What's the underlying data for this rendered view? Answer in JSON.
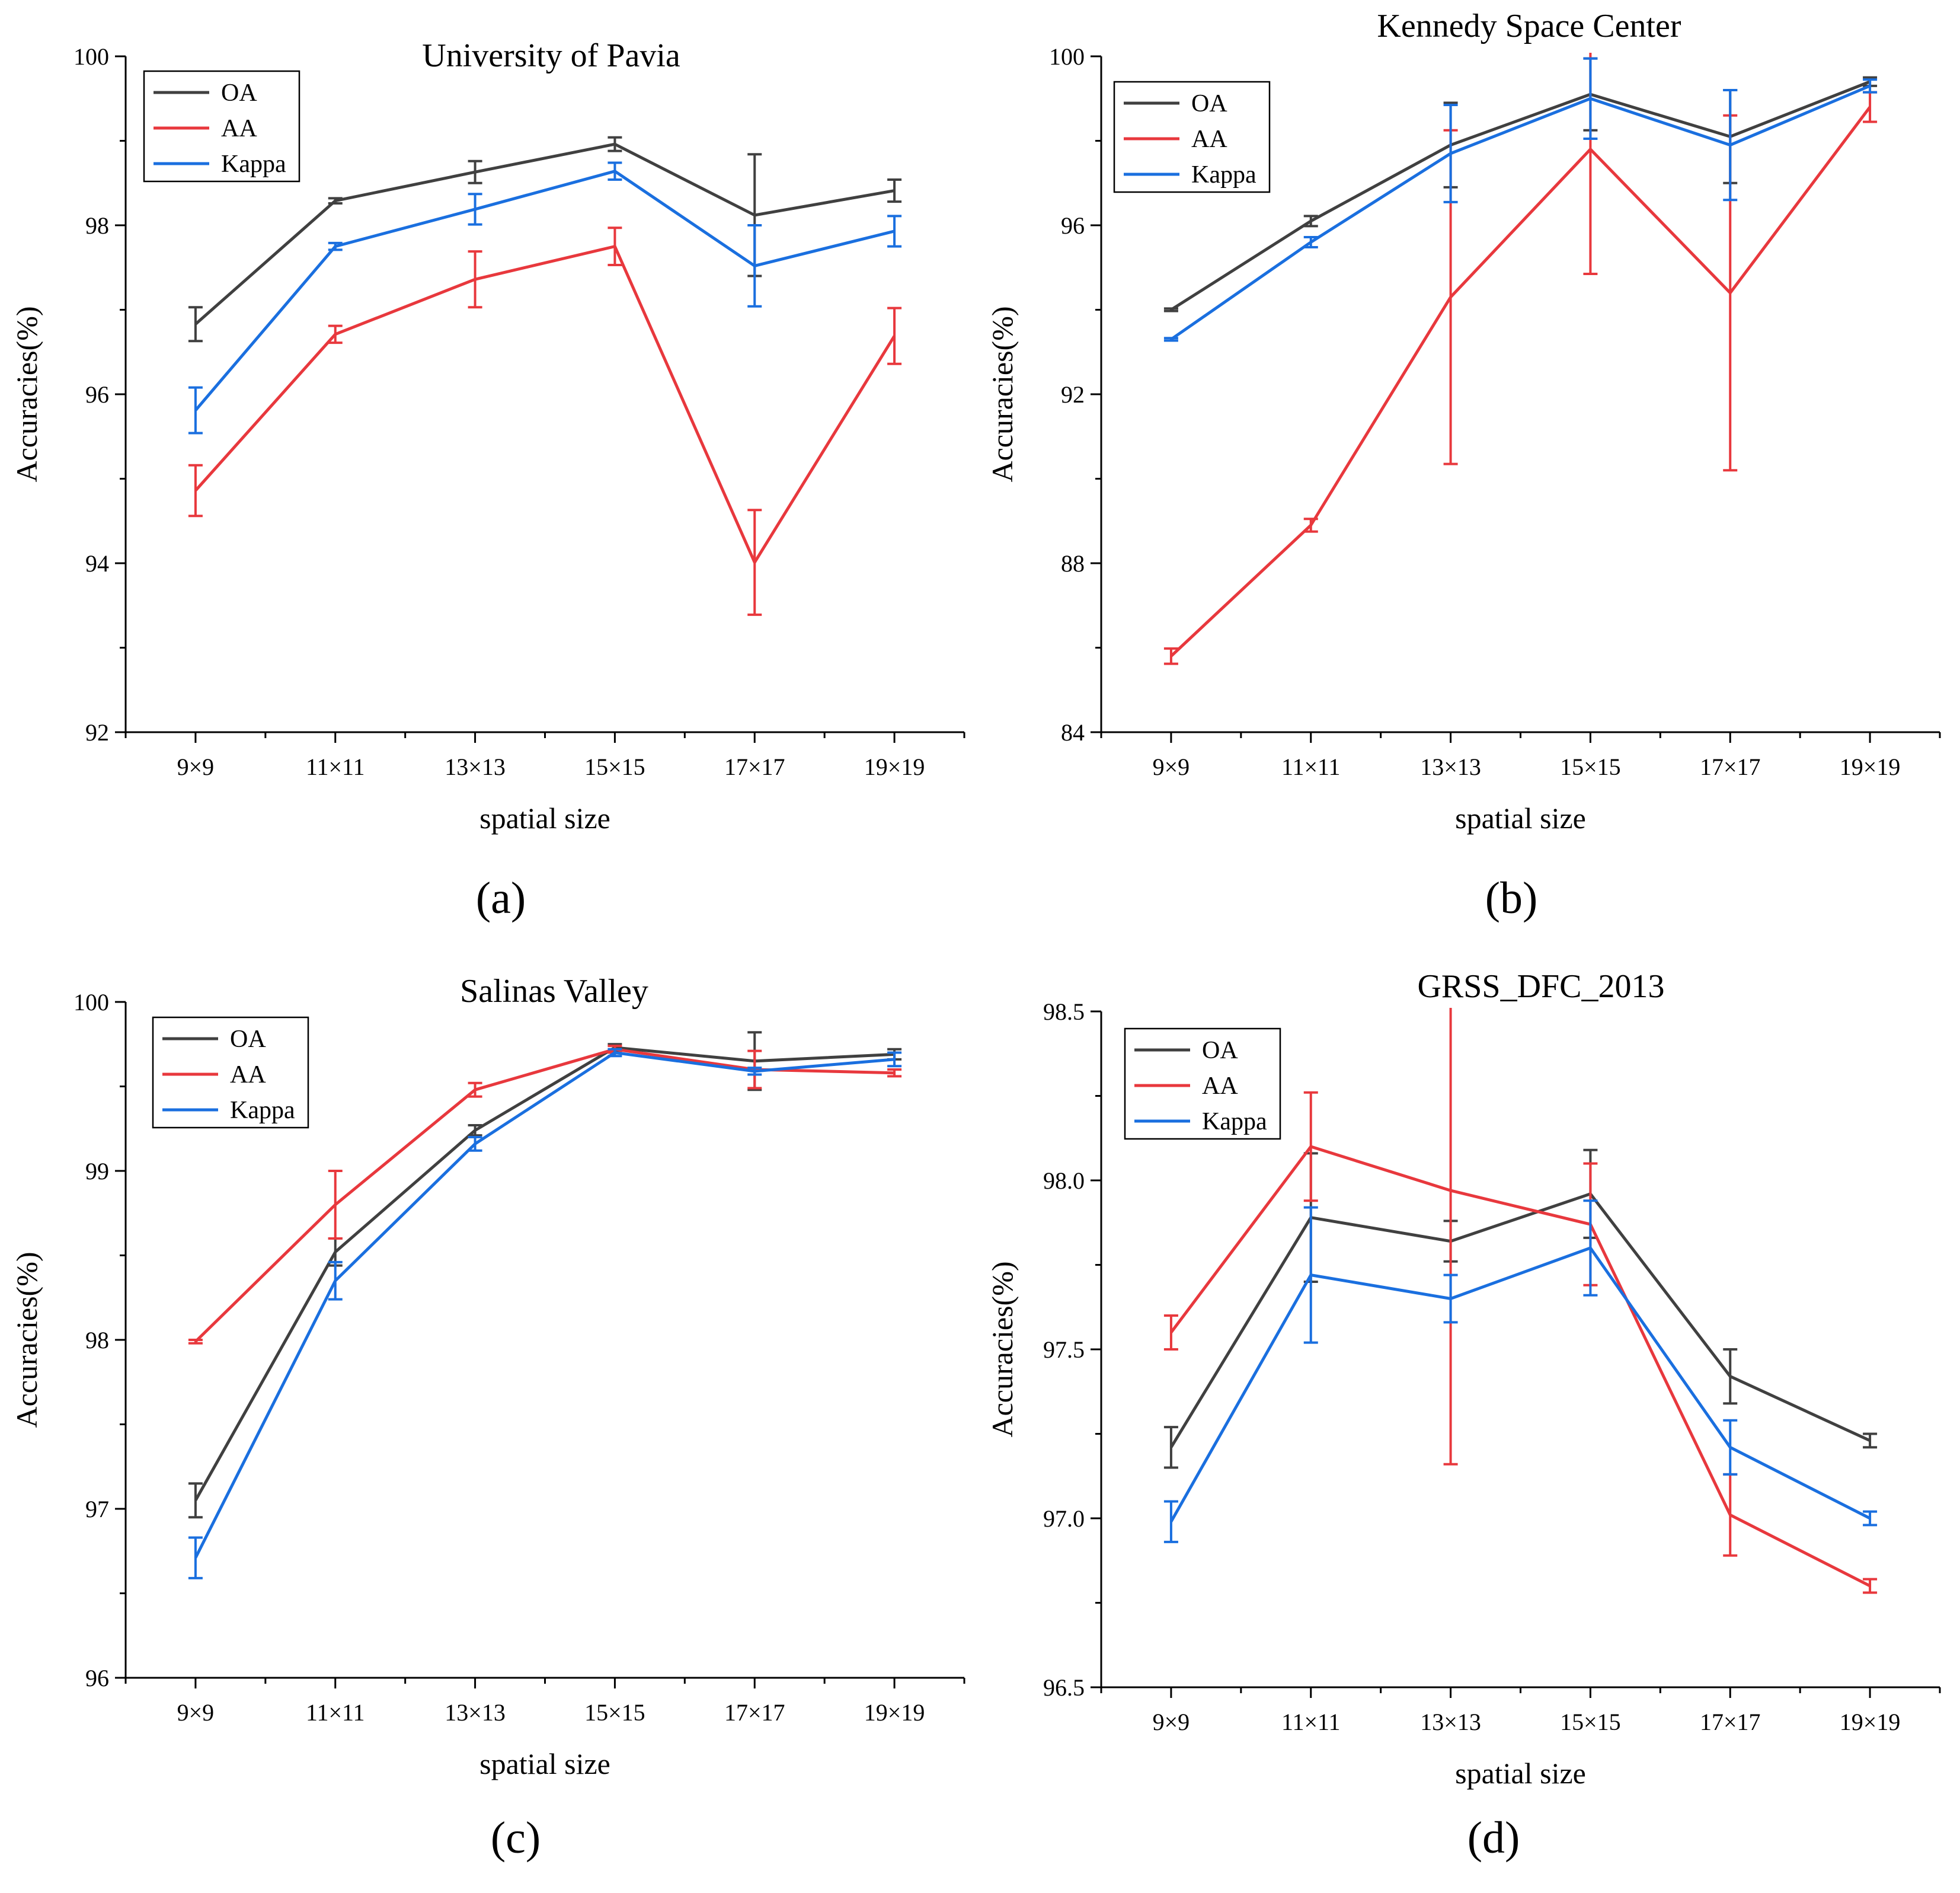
{
  "colors": {
    "OA": "#404040",
    "AA": "#e8383d",
    "Kappa": "#1a6fdf",
    "axis": "#000000"
  },
  "chart_data": [
    {
      "type": "line",
      "panel": "(a)",
      "title": "University of Pavia",
      "xlabel": "spatial size",
      "ylabel": "Accuracies(%)",
      "categories": [
        "9×9",
        "11×11",
        "13×13",
        "15×15",
        "17×17",
        "19×19"
      ],
      "ylim": [
        92,
        100
      ],
      "yticks": [
        92,
        94,
        96,
        98,
        100
      ],
      "yminor": 1,
      "legend_position": "top-left",
      "series": [
        {
          "name": "OA",
          "values": [
            96.83,
            98.29,
            98.63,
            98.96,
            98.12,
            98.41
          ],
          "errors": [
            0.2,
            0.03,
            0.13,
            0.08,
            0.72,
            0.13
          ]
        },
        {
          "name": "AA",
          "values": [
            94.86,
            96.71,
            97.36,
            97.75,
            94.01,
            96.69
          ],
          "errors": [
            0.3,
            0.1,
            0.33,
            0.22,
            0.62,
            0.33
          ]
        },
        {
          "name": "Kappa",
          "values": [
            95.81,
            97.75,
            98.19,
            98.64,
            97.52,
            97.93
          ],
          "errors": [
            0.27,
            0.04,
            0.18,
            0.1,
            0.48,
            0.18
          ]
        }
      ]
    },
    {
      "type": "line",
      "panel": "(b)",
      "title": "Kennedy Space Center",
      "xlabel": "spatial size",
      "ylabel": "Accuracies(%)",
      "categories": [
        "9×9",
        "11×11",
        "13×13",
        "15×15",
        "17×17",
        "19×19"
      ],
      "ylim": [
        84,
        100
      ],
      "yticks": [
        84,
        88,
        92,
        96,
        100
      ],
      "yminor": 2,
      "legend_position": "top-left",
      "series": [
        {
          "name": "OA",
          "values": [
            94.0,
            96.1,
            97.9,
            99.1,
            98.1,
            99.4
          ],
          "errors": [
            0.03,
            0.12,
            1.0,
            0.85,
            1.1,
            0.1
          ]
        },
        {
          "name": "AA",
          "values": [
            85.8,
            88.9,
            94.3,
            97.8,
            94.4,
            98.8
          ],
          "errors": [
            0.18,
            0.15,
            3.95,
            2.95,
            4.2,
            0.35
          ]
        },
        {
          "name": "Kappa",
          "values": [
            93.3,
            95.6,
            97.7,
            99.0,
            97.9,
            99.3
          ],
          "errors": [
            0.03,
            0.12,
            1.15,
            0.95,
            1.3,
            0.15
          ]
        }
      ]
    },
    {
      "type": "line",
      "panel": "(c)",
      "title": "Salinas Valley",
      "xlabel": "spatial size",
      "ylabel": "Accuracies(%)",
      "categories": [
        "9×9",
        "11×11",
        "13×13",
        "15×15",
        "17×17",
        "19×19"
      ],
      "ylim": [
        96,
        100
      ],
      "yticks": [
        96,
        97,
        98,
        99,
        100
      ],
      "yminor": 0.5,
      "legend_position": "top-left",
      "series": [
        {
          "name": "OA",
          "values": [
            97.05,
            98.52,
            99.24,
            99.73,
            99.65,
            99.69
          ],
          "errors": [
            0.1,
            0.08,
            0.03,
            0.02,
            0.17,
            0.03
          ]
        },
        {
          "name": "AA",
          "values": [
            97.99,
            98.8,
            99.48,
            99.72,
            99.6,
            99.58
          ],
          "errors": [
            0.01,
            0.2,
            0.04,
            0.02,
            0.11,
            0.02
          ]
        },
        {
          "name": "Kappa",
          "values": [
            96.71,
            98.35,
            99.16,
            99.7,
            99.59,
            99.66
          ],
          "errors": [
            0.12,
            0.11,
            0.04,
            0.02,
            0.02,
            0.04
          ]
        }
      ]
    },
    {
      "type": "line",
      "panel": "(d)",
      "title": "GRSS_DFC_2013",
      "xlabel": "spatial size",
      "ylabel": "Accuracies(%)",
      "categories": [
        "9×9",
        "11×11",
        "13×13",
        "15×15",
        "17×17",
        "19×19"
      ],
      "ylim": [
        96.5,
        98.5
      ],
      "yticks": [
        96.5,
        97.0,
        97.5,
        98.0,
        98.5
      ],
      "ytick_labels": [
        "96.5",
        "97.0",
        "97.5",
        "98.0",
        "98.5"
      ],
      "yminor": 0.25,
      "legend_position": "top-left",
      "series": [
        {
          "name": "OA",
          "values": [
            97.21,
            97.89,
            97.82,
            97.96,
            97.42,
            97.23
          ],
          "errors": [
            0.06,
            0.19,
            0.06,
            0.13,
            0.08,
            0.02
          ]
        },
        {
          "name": "AA",
          "values": [
            97.55,
            98.1,
            97.97,
            97.87,
            97.01,
            96.8
          ],
          "errors": [
            0.05,
            0.16,
            0.81,
            0.18,
            0.12,
            0.02
          ]
        },
        {
          "name": "Kappa",
          "values": [
            96.99,
            97.72,
            97.65,
            97.8,
            97.21,
            97.0
          ],
          "errors": [
            0.06,
            0.2,
            0.07,
            0.14,
            0.08,
            0.02
          ]
        }
      ]
    }
  ]
}
